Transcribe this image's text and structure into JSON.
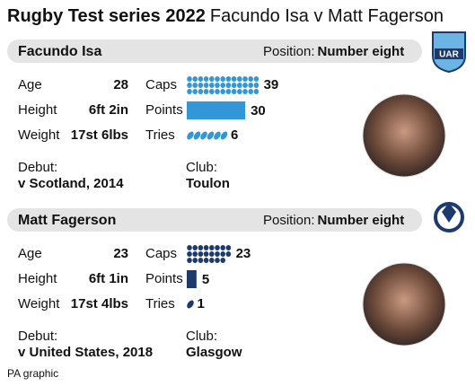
{
  "title": {
    "bold": "Rugby Test series 2022",
    "rest": "Facundo Isa v Matt Fagerson"
  },
  "players": [
    {
      "name": "Facundo Isa",
      "position_label": "Position:",
      "position": "Number eight",
      "badge": "UAR",
      "color": "#3197d6",
      "stats": [
        {
          "label": "Age",
          "value": 28
        },
        {
          "label": "Height",
          "value": "6ft 2in"
        },
        {
          "label": "Weight",
          "value": "17st 6lbs"
        }
      ],
      "caps": {
        "label": "Caps",
        "value": 39
      },
      "points": {
        "label": "Points",
        "value": 30
      },
      "tries": {
        "label": "Tries",
        "value": 6
      },
      "debut_label": "Debut:",
      "debut": "v Scotland, 2014",
      "club_label": "Club:",
      "club": "Toulon"
    },
    {
      "name": "Matt Fagerson",
      "position_label": "Position:",
      "position": "Number eight",
      "color": "#1c3a6e",
      "stats": [
        {
          "label": "Age",
          "value": 23
        },
        {
          "label": "Height",
          "value": "6ft 1in"
        },
        {
          "label": "Weight",
          "value": "17st 4lbs"
        }
      ],
      "caps": {
        "label": "Caps",
        "value": 23
      },
      "points": {
        "label": "Points",
        "value": 5
      },
      "tries": {
        "label": "Tries",
        "value": 1
      },
      "debut_label": "Debut:",
      "debut": "v United States, 2018",
      "club_label": "Club:",
      "club": "Glasgow"
    }
  ],
  "source": "PA graphic"
}
